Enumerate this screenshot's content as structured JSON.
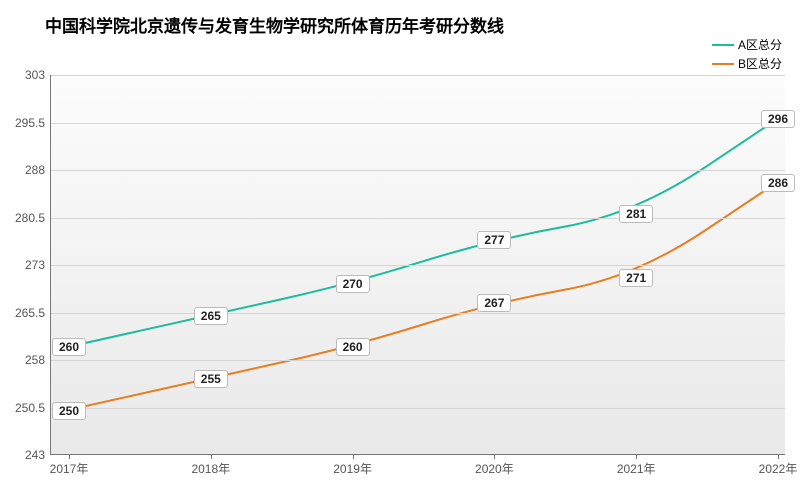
{
  "chart": {
    "type": "line",
    "title": "中国科学院北京遗传与发育生物学研究所体育历年考研分数线",
    "title_fontsize": 17,
    "title_color": "#000000",
    "background_gradient_top": "#fcfcfc",
    "background_gradient_bottom": "#e9e9e9",
    "grid_color": "#d5d5d5",
    "axis_color": "#777777",
    "label_fontsize": 12,
    "x_categories": [
      "2017年",
      "2018年",
      "2019年",
      "2020年",
      "2021年",
      "2022年"
    ],
    "y_min": 243,
    "y_max": 303,
    "y_ticks": [
      243,
      250.5,
      258,
      265.5,
      273,
      280.5,
      288,
      295.5,
      303
    ],
    "series": [
      {
        "name": "A区总分",
        "color": "#1abc9c",
        "line_width": 2,
        "values": [
          260,
          265,
          270,
          277,
          281,
          296
        ]
      },
      {
        "name": "B区总分",
        "color": "#e67e22",
        "line_width": 2,
        "values": [
          250,
          255,
          260,
          267,
          271,
          286
        ]
      }
    ],
    "legend_position": "top-right",
    "data_label_bg": "#ffffff",
    "data_label_border": "#bbbbbb"
  }
}
